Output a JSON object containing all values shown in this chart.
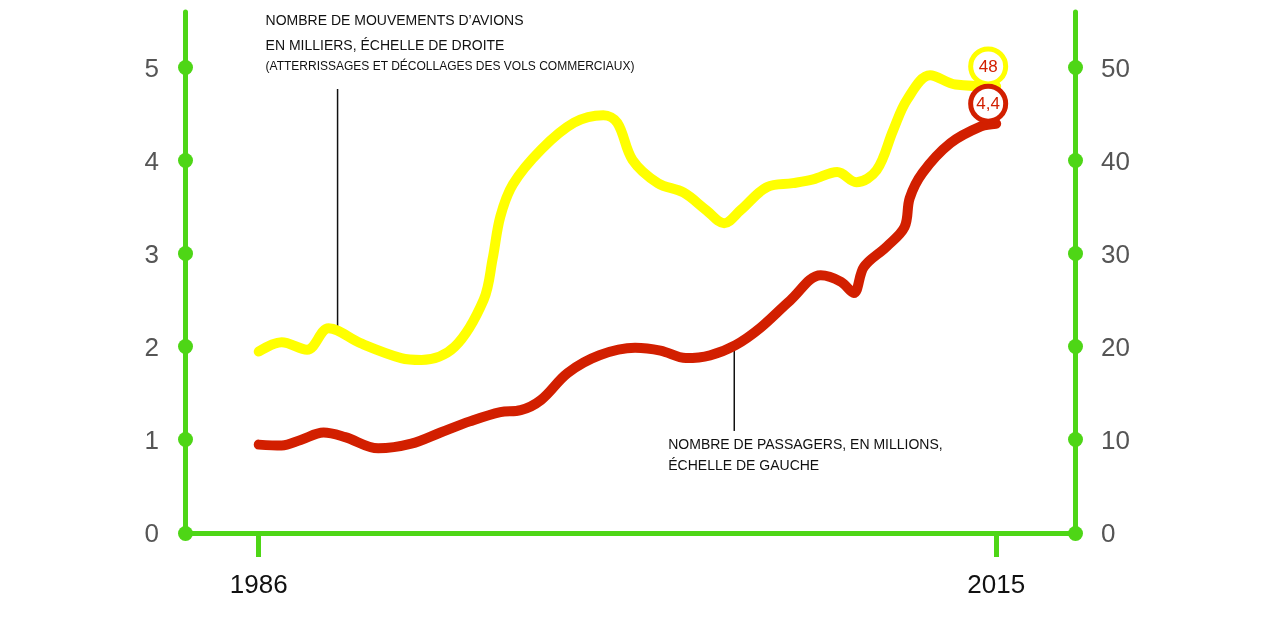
{
  "chart_data": {
    "type": "line",
    "xlim": [
      1983.1,
      2018.1
    ],
    "xticks": [
      1986,
      2015
    ],
    "ylim": [
      0,
      5.6
    ],
    "yticks": [
      0,
      1,
      2,
      3,
      4,
      5
    ],
    "y2lim": [
      0,
      56
    ],
    "y2ticks": [
      0,
      10,
      20,
      30,
      40,
      50
    ],
    "grid": false,
    "annotations": [
      {
        "text": "NOMBRE DE MOUVEMENTS D’AVIONS\nEN MILLIERS, ÉCHELLE DE DROITE\n(ATTERRISSAGES ET DÉCOLLAGES DES VOLS COMMERCIAUX)",
        "x": 1989.1,
        "y": 2.15
      },
      {
        "text": "NOMBRE DE PASSAGERS, EN MILLIONS,\nÉCHELLE DE GAUCHE",
        "x": 2004.7,
        "y": 2.0
      }
    ],
    "series": [
      {
        "color": "#ffff00",
        "axis": "y2",
        "x": [
          1986,
          1986.9,
          1987.9,
          1988.75,
          1990,
          1991.6,
          1992.4,
          1993.7,
          1994.85,
          1995.2,
          1995.5,
          1996,
          1997.1,
          1998.4,
          1999.55,
          2000.1,
          2000.7,
          2001.7,
          2002.7,
          2003.6,
          2004.3,
          2004.95,
          2006,
          2007,
          2007.8,
          2008.75,
          2009.5,
          2010.3,
          2010.95,
          2011.5,
          2012.4,
          2013.4,
          2015
        ],
        "values": [
          19.5,
          20.5,
          19.7,
          22.0,
          20.4,
          18.8,
          18.6,
          20.0,
          25.1,
          29.5,
          34.0,
          37.5,
          41.2,
          44.1,
          44.9,
          44.1,
          40.1,
          37.6,
          36.6,
          34.7,
          33.3,
          34.7,
          37.2,
          37.6,
          38.0,
          38.8,
          37.7,
          39.0,
          43.3,
          46.6,
          49.2,
          48.2,
          48
        ],
        "value_labels": [
          null,
          null,
          null,
          null,
          null,
          null,
          null,
          null,
          null,
          null,
          null,
          null,
          null,
          null,
          null,
          null,
          null,
          null,
          null,
          null,
          null,
          null,
          null,
          null,
          null,
          null,
          null,
          null,
          null,
          null,
          null,
          null,
          "48"
        ]
      },
      {
        "color": "#d21f00",
        "x": [
          1986,
          1986.9,
          1987.65,
          1988.55,
          1989.4,
          1990.7,
          1992,
          1993.15,
          1994.3,
          1995.5,
          1996.3,
          1997.1,
          1998.15,
          1999.4,
          2000.8,
          2001.8,
          2002.8,
          2003.75,
          2004.75,
          2005.7,
          2006.9,
          2008.1,
          2008.9,
          2009.4,
          2009.8,
          2010.7,
          2011.4,
          2011.6,
          2012.1,
          2013.2,
          2014.4,
          2015
        ],
        "values": [
          0.95,
          0.94,
          1.0,
          1.08,
          1.03,
          0.91,
          0.96,
          1.08,
          1.2,
          1.3,
          1.32,
          1.43,
          1.72,
          1.91,
          1.99,
          1.96,
          1.88,
          1.91,
          2.02,
          2.2,
          2.5,
          2.77,
          2.7,
          2.58,
          2.86,
          3.08,
          3.29,
          3.6,
          3.87,
          4.19,
          4.37,
          4.4
        ],
        "value_labels": [
          null,
          null,
          null,
          null,
          null,
          null,
          null,
          null,
          null,
          null,
          null,
          null,
          null,
          null,
          null,
          null,
          null,
          null,
          null,
          null,
          null,
          null,
          null,
          null,
          null,
          null,
          null,
          null,
          null,
          null,
          null,
          "4,4"
        ]
      }
    ]
  }
}
